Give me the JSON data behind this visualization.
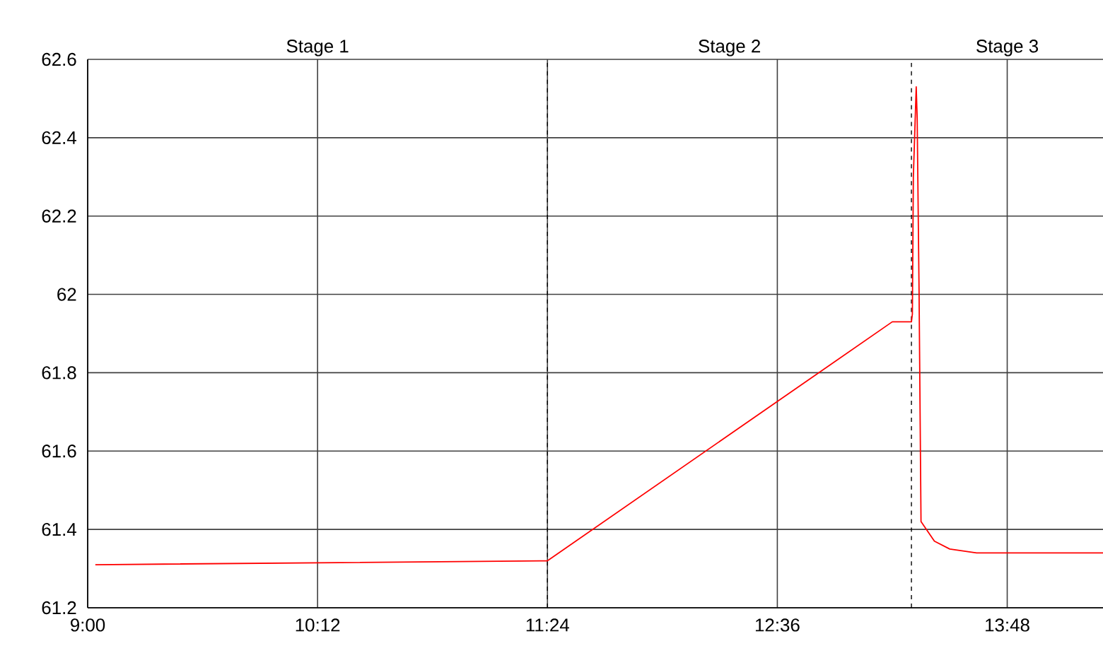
{
  "chart_data": {
    "type": "line",
    "x": [
      9.04,
      11.4,
      13.2,
      13.3,
      13.305,
      13.31,
      13.325,
      13.33,
      13.34,
      13.35,
      13.42,
      13.5,
      13.64,
      14.3
    ],
    "series": [
      {
        "color": "#ff0000",
        "values": [
          61.31,
          61.32,
          61.93,
          61.93,
          61.95,
          62.3,
          62.53,
          62.45,
          62.0,
          61.42,
          61.37,
          61.35,
          61.34,
          61.34
        ]
      }
    ],
    "xlim": [
      9,
      14.3
    ],
    "xticks": [
      {
        "value": 9,
        "label": "9:00"
      },
      {
        "value": 10.2,
        "label": "10:12"
      },
      {
        "value": 11.4,
        "label": "11:24"
      },
      {
        "value": 12.6,
        "label": "12:36"
      },
      {
        "value": 13.8,
        "label": "13:48"
      }
    ],
    "ylim": [
      61.2,
      62.6
    ],
    "yticks": [
      61.2,
      61.4,
      61.6,
      61.8,
      62,
      62.2,
      62.4,
      62.6
    ],
    "grid": true,
    "marker": "none",
    "line_style": "solid",
    "ref_lines": [
      {
        "axis": "x",
        "value": 11.4,
        "line_style": "dashed"
      },
      {
        "axis": "x",
        "value": 13.3,
        "line_style": "dashed"
      }
    ],
    "annotations": [
      "Stage 1",
      "Stage 2",
      "Stage 3"
    ]
  }
}
